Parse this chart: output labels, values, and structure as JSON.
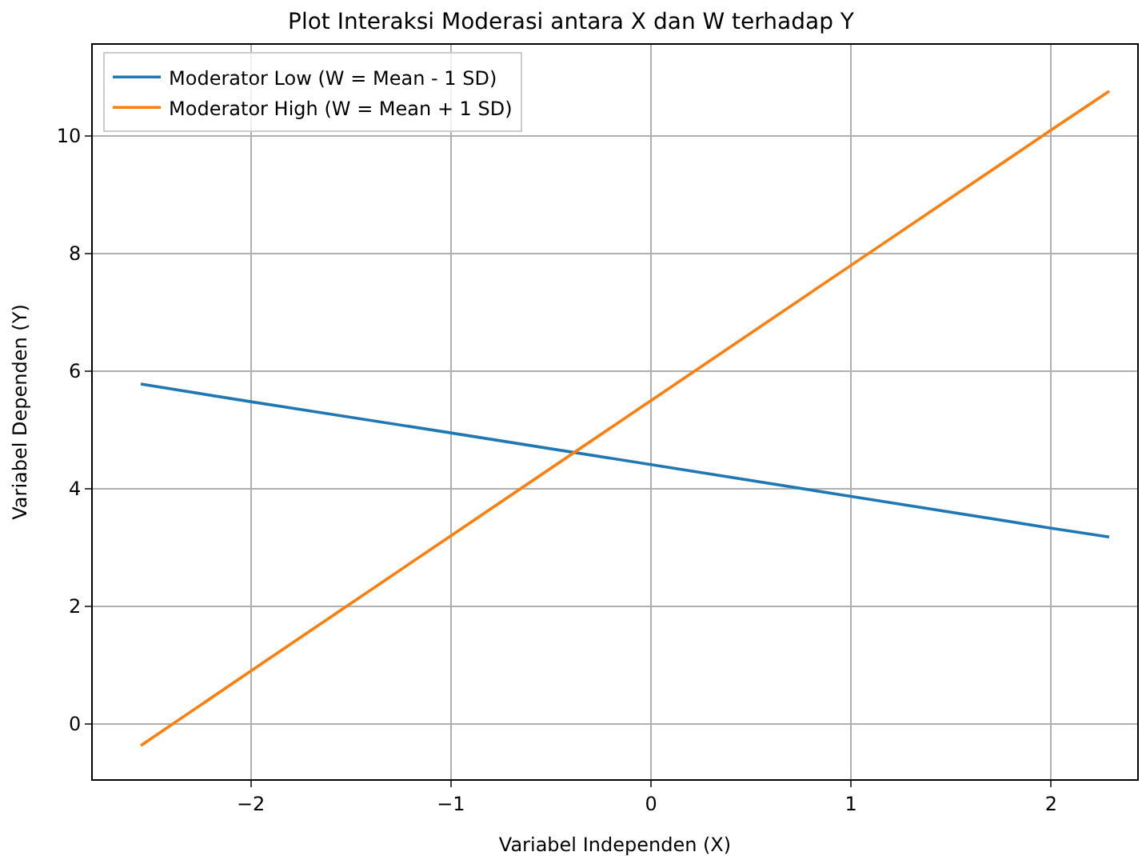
{
  "chart_data": {
    "type": "line",
    "title": "Plot Interaksi Moderasi antara X dan W terhadap Y",
    "xlabel": "Variabel Independen (X)",
    "ylabel": "Variabel Dependen (Y)",
    "series": [
      {
        "name": "Moderator Low (W = Mean - 1 SD)",
        "color": "#1f77b4",
        "x": [
          -2.55,
          -2,
          -1,
          0,
          1,
          2,
          2.29
        ],
        "values": [
          5.78,
          5.48,
          4.95,
          4.41,
          3.87,
          3.33,
          3.18
        ]
      },
      {
        "name": "Moderator High (W = Mean + 1 SD)",
        "color": "#ff7f0e",
        "x": [
          -2.55,
          -2,
          -1,
          0,
          1,
          2,
          2.29
        ],
        "values": [
          -0.37,
          0.9,
          3.2,
          5.5,
          7.8,
          10.1,
          10.76
        ]
      }
    ],
    "xlim": [
      -2.79,
      2.43
    ],
    "xticks": [
      {
        "value": -2,
        "label": "−2"
      },
      {
        "value": -1,
        "label": "−1"
      },
      0,
      1,
      2
    ],
    "ylim": [
      -0.94,
      11.55
    ],
    "yticks": [
      0,
      2,
      4,
      6,
      8,
      10
    ],
    "grid": true,
    "legend": "top left",
    "marker": "none",
    "line_style": "solid"
  }
}
